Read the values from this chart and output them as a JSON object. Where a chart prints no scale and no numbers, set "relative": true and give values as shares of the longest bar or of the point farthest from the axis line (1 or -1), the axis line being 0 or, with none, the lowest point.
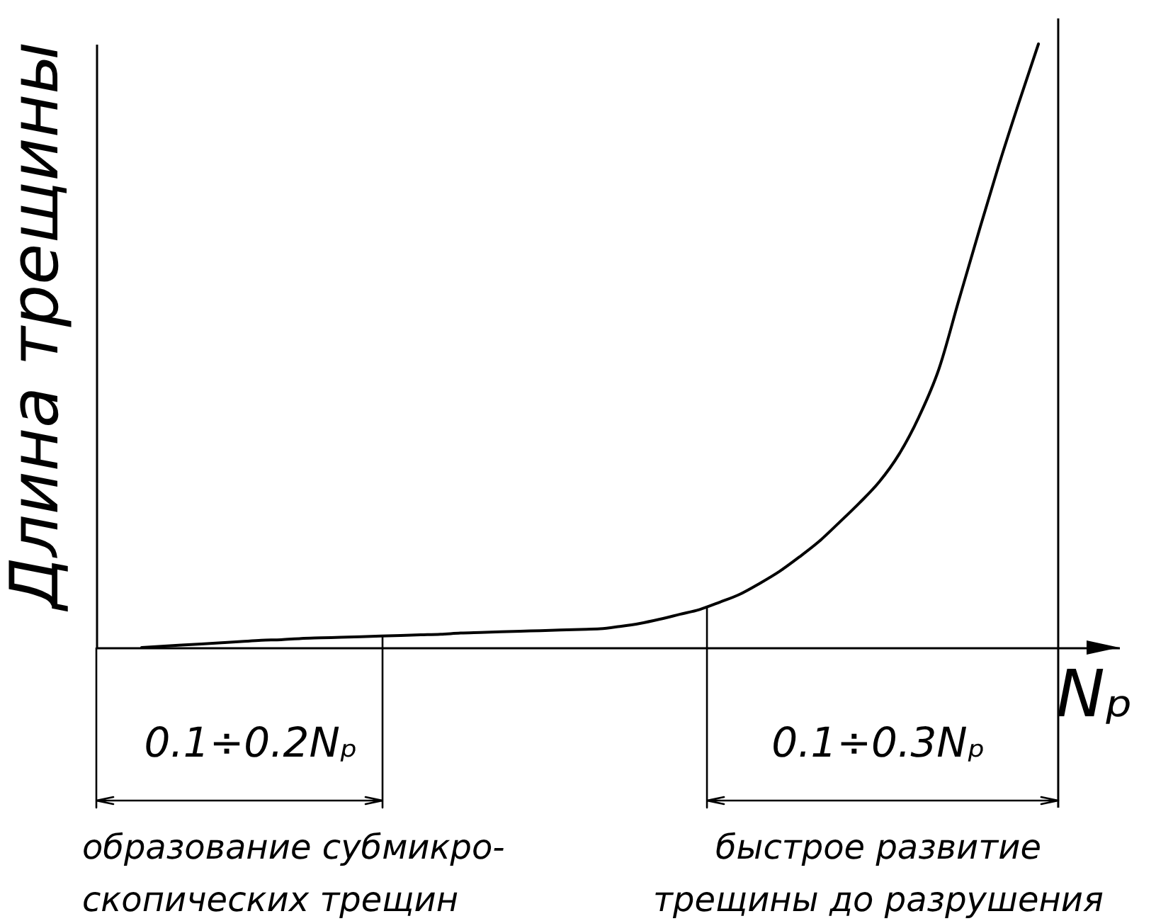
{
  "chart_data": {
    "type": "line",
    "relative": true,
    "xlabel": "Nₚ",
    "ylabel": "Длина трещины",
    "categories": [
      null,
      null,
      null,
      null,
      null,
      null,
      null,
      null,
      null,
      null,
      null,
      null,
      null,
      null,
      null,
      null,
      null,
      null,
      null,
      null,
      null,
      null,
      null,
      null,
      null,
      null,
      null,
      null,
      null,
      null,
      null,
      null,
      null,
      null,
      null,
      null,
      null,
      null,
      null,
      null,
      null,
      null,
      null,
      null,
      null,
      null
    ],
    "values": [
      0,
      0.002,
      0.004,
      0.006,
      0.008,
      0.01,
      0.012,
      0.013,
      0.015,
      0.016,
      0.017,
      0.018,
      0.019,
      0.02,
      0.021,
      0.022,
      0.024,
      0.025,
      0.026,
      0.027,
      0.028,
      0.029,
      0.03,
      0.031,
      0.035,
      0.04,
      0.047,
      0.055,
      0.063,
      0.075,
      0.088,
      0.106,
      0.126,
      0.15,
      0.176,
      0.207,
      0.239,
      0.274,
      0.32,
      0.382,
      0.461,
      0.575,
      0.688,
      0.798,
      0.901,
      1
    ],
    "color": "#000000",
    "line_style": "solid",
    "annotations": [
      "0.1÷0.2Nₚ",
      "0.1÷0.3Nₚ",
      "образование субмикро-\nскопических трещин",
      "быстрое развитие\nтрещины до разрушения"
    ]
  }
}
